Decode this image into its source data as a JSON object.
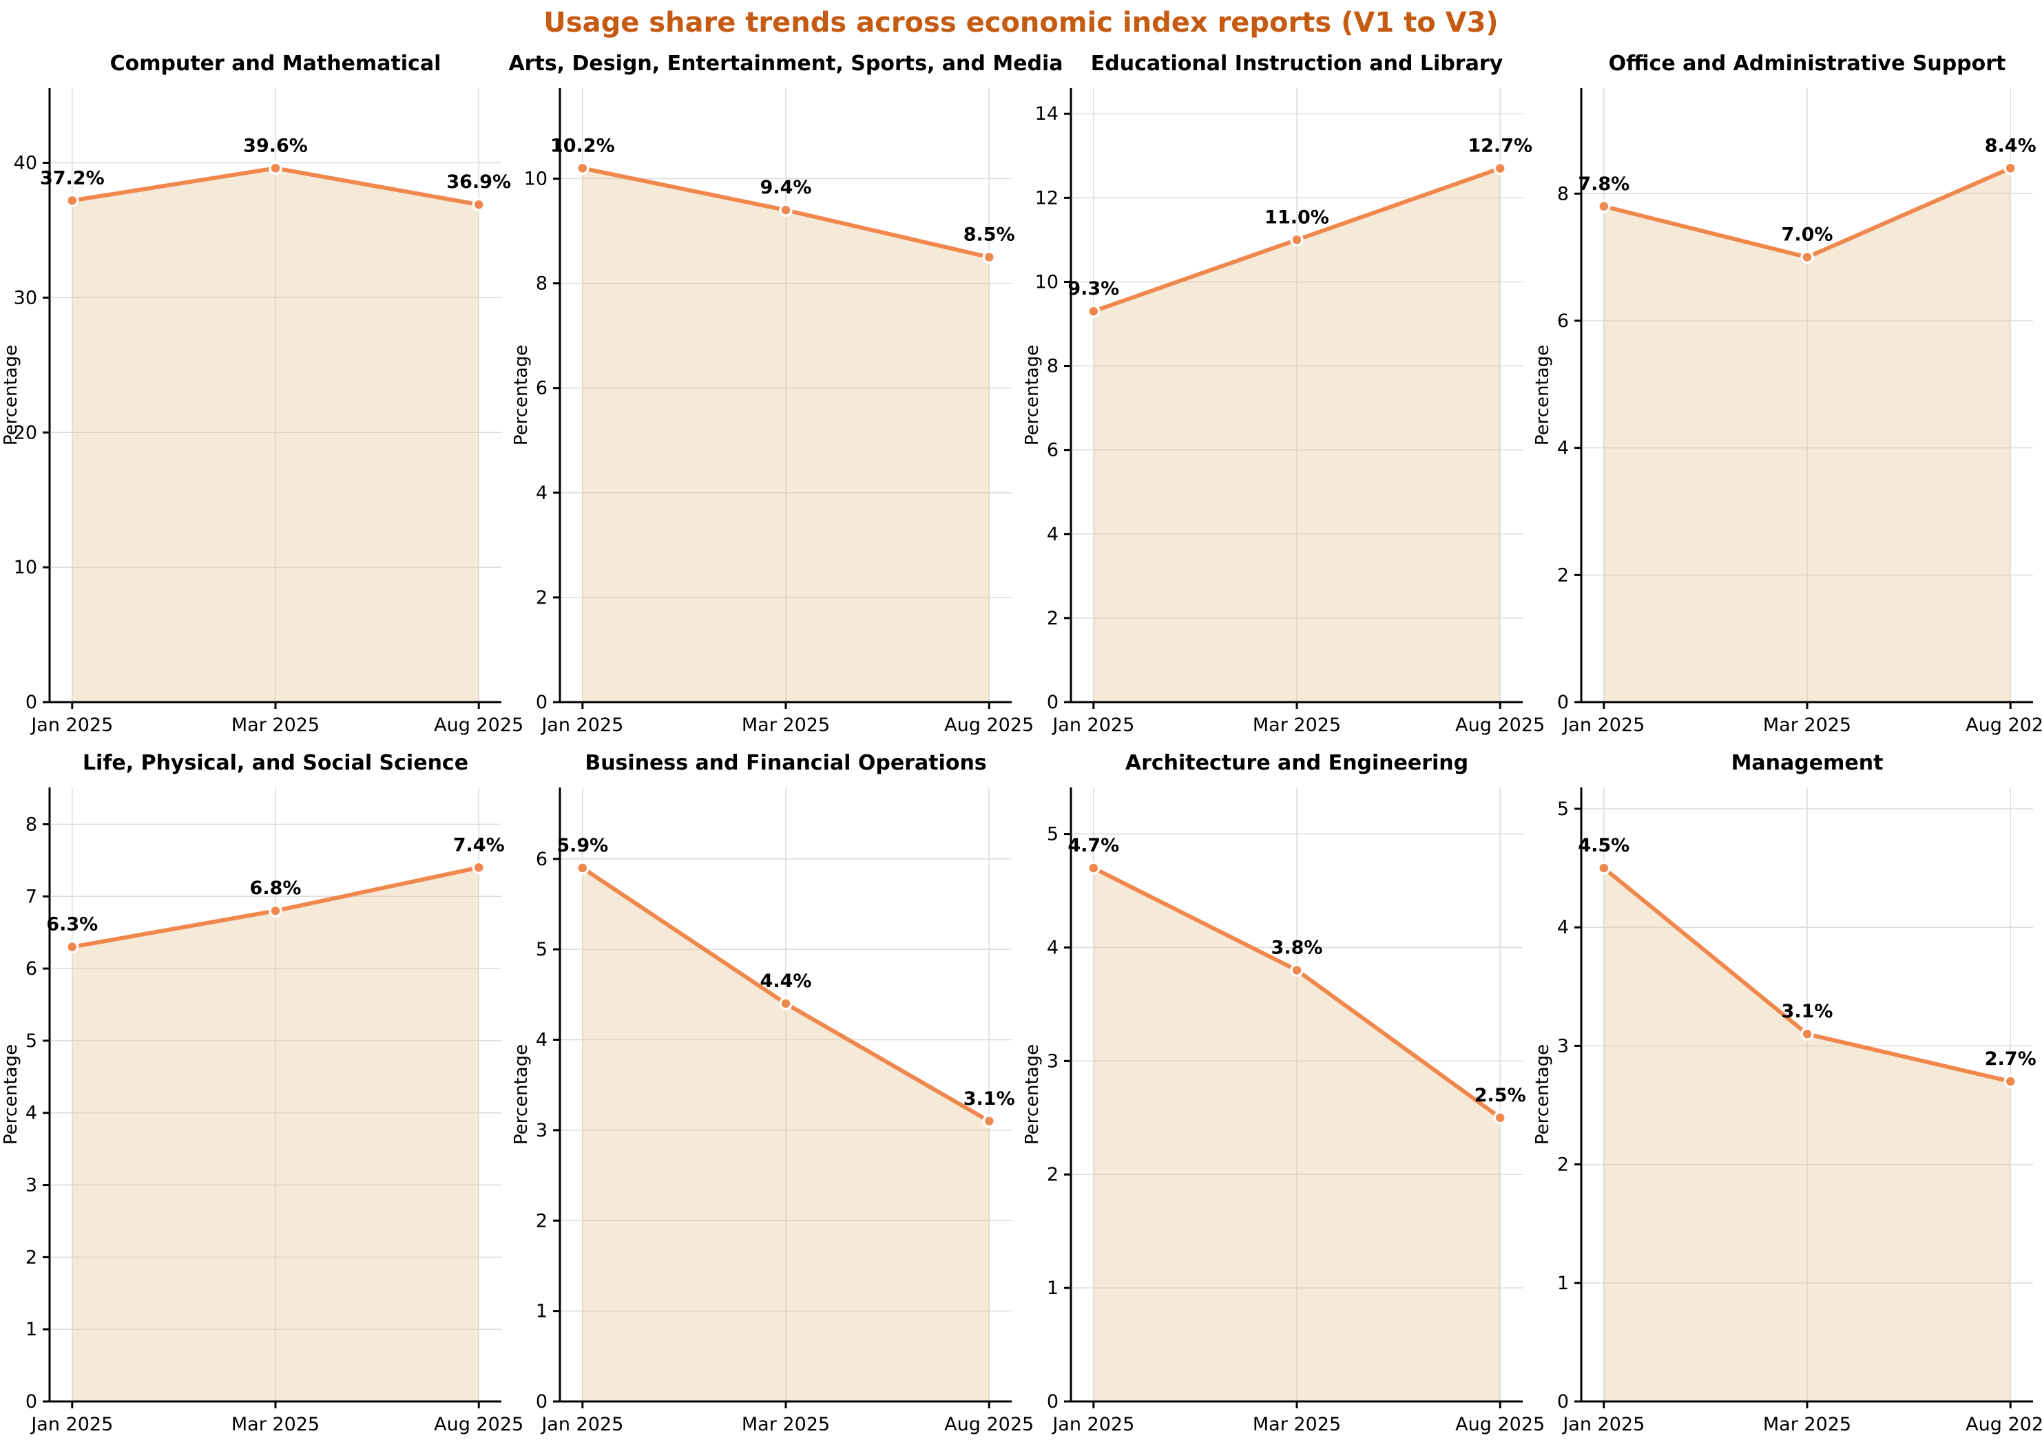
{
  "page_title": {
    "text": "Usage share trends across economic index reports (V1 to V3)",
    "color": "#C55A11"
  },
  "chart_data": {
    "type": "area",
    "layout": {
      "rows": 2,
      "cols": 4,
      "grid": true,
      "legend": "none"
    },
    "x_categories": [
      "Jan 2025",
      "Mar 2025",
      "Aug 2025"
    ],
    "ylabel": "Percentage",
    "style": {
      "line_color": "#F0884E",
      "fill_color": "rgba(230,197,150,0.38)",
      "marker_edge_color": "#FFFFFF",
      "grid_color": "#DBDBDB",
      "axis_color": "#000000",
      "text_color": "#000000",
      "title_color": "#000000"
    },
    "charts": [
      {
        "title": "Computer and Mathematical",
        "values": [
          37.2,
          39.6,
          36.9
        ],
        "labels": [
          "37.2%",
          "39.6%",
          "36.9%"
        ],
        "ylim": [
          0,
          45.54
        ],
        "yticks": [
          0,
          10,
          20,
          30,
          40
        ]
      },
      {
        "title": "Arts, Design, Entertainment, Sports, and Media",
        "values": [
          10.2,
          9.4,
          8.5
        ],
        "labels": [
          "10.2%",
          "9.4%",
          "8.5%"
        ],
        "ylim": [
          0,
          11.73
        ],
        "yticks": [
          0,
          2,
          4,
          6,
          8,
          10
        ]
      },
      {
        "title": "Educational Instruction and Library",
        "values": [
          9.3,
          11.0,
          12.7
        ],
        "labels": [
          "9.3%",
          "11.0%",
          "12.7%"
        ],
        "ylim": [
          0,
          14.61
        ],
        "yticks": [
          0,
          2,
          4,
          6,
          8,
          10,
          12,
          14
        ]
      },
      {
        "title": "Office and Administrative Support",
        "values": [
          7.8,
          7.0,
          8.4
        ],
        "labels": [
          "7.8%",
          "7.0%",
          "8.4%"
        ],
        "ylim": [
          0,
          9.66
        ],
        "yticks": [
          0,
          2,
          4,
          6,
          8
        ]
      },
      {
        "title": "Life, Physical, and Social Science",
        "values": [
          6.3,
          6.8,
          7.4
        ],
        "labels": [
          "6.3%",
          "6.8%",
          "7.4%"
        ],
        "ylim": [
          0,
          8.51
        ],
        "yticks": [
          0,
          1,
          2,
          3,
          4,
          5,
          6,
          7,
          8
        ]
      },
      {
        "title": "Business and Financial Operations",
        "values": [
          5.9,
          4.4,
          3.1
        ],
        "labels": [
          "5.9%",
          "4.4%",
          "3.1%"
        ],
        "ylim": [
          0,
          6.79
        ],
        "yticks": [
          0,
          1,
          2,
          3,
          4,
          5,
          6
        ]
      },
      {
        "title": "Architecture and Engineering",
        "values": [
          4.7,
          3.8,
          2.5
        ],
        "labels": [
          "4.7%",
          "3.8%",
          "2.5%"
        ],
        "ylim": [
          0,
          5.41
        ],
        "yticks": [
          0,
          1,
          2,
          3,
          4,
          5
        ]
      },
      {
        "title": "Management",
        "values": [
          4.5,
          3.1,
          2.7
        ],
        "labels": [
          "4.5%",
          "3.1%",
          "2.7%"
        ],
        "ylim": [
          0,
          5.18
        ],
        "yticks": [
          0,
          1,
          2,
          3,
          4,
          5
        ]
      }
    ]
  }
}
